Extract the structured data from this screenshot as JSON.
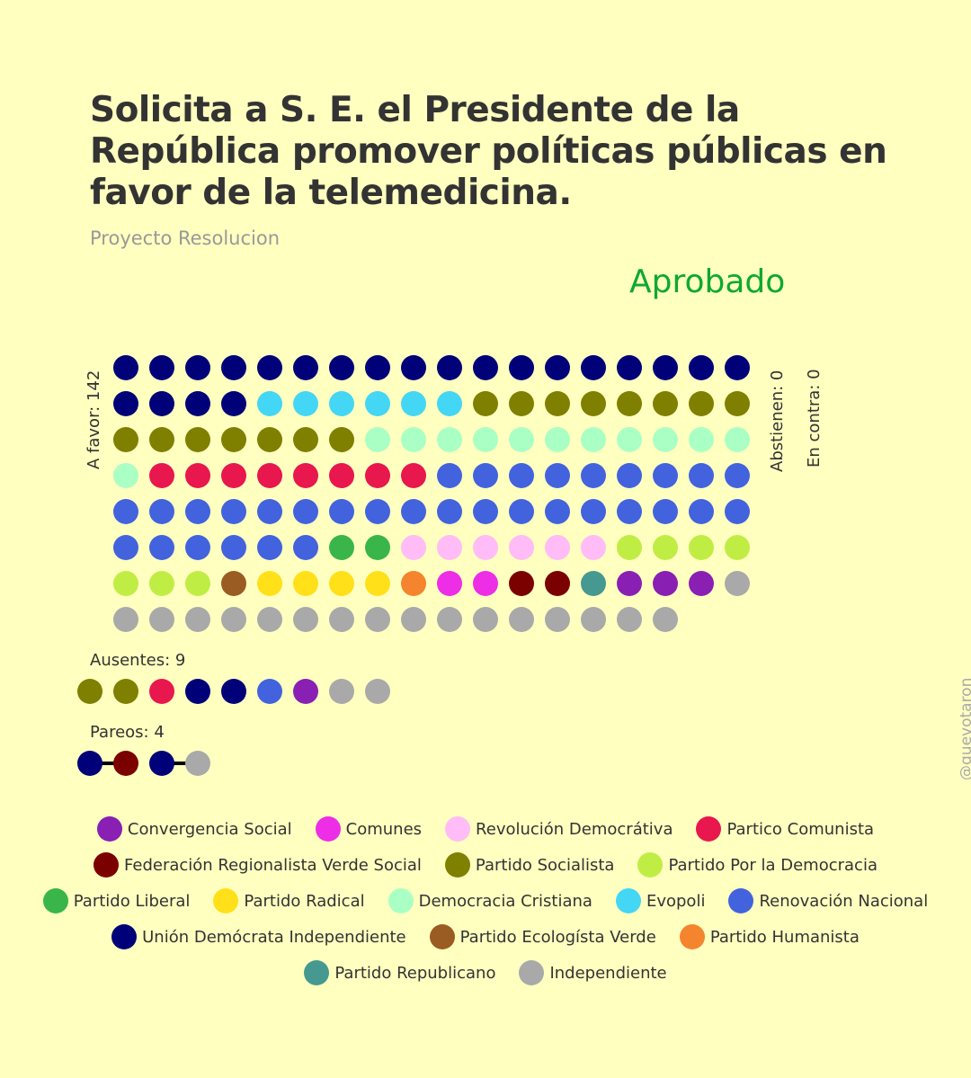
{
  "header": {
    "title": "Solicita a S. E. el Presidente de la República promover políticas públicas en favor de la telemedicina.",
    "subtitle": "Proyecto Resolucion",
    "status": "Aprobado",
    "status_color": "#0fa832"
  },
  "parties": {
    "CS": {
      "name": "Convergencia Social",
      "color": "#8a1fb3"
    },
    "COM": {
      "name": "Comunes",
      "color": "#ee2de6"
    },
    "RD": {
      "name": "Revolución Democrátiva",
      "color": "#ffbcf6"
    },
    "PC": {
      "name": "Partico Comunista",
      "color": "#e8174e"
    },
    "FRVS": {
      "name": "Federación Regionalista Verde Social",
      "color": "#7b0000"
    },
    "PS": {
      "name": "Partido Socialista",
      "color": "#7f7f00"
    },
    "PPD": {
      "name": "Partido Por la Democracia",
      "color": "#c0ed44"
    },
    "PL": {
      "name": "Partido Liberal",
      "color": "#3ab54a"
    },
    "PR": {
      "name": "Partido Radical",
      "color": "#ffe019"
    },
    "DC": {
      "name": "Democracia Cristiana",
      "color": "#aaffc4"
    },
    "EVO": {
      "name": "Evopoli",
      "color": "#44d6f5"
    },
    "RN": {
      "name": "Renovación Nacional",
      "color": "#4263dd"
    },
    "UDI": {
      "name": "Unión Demócrata Independiente",
      "color": "#000078"
    },
    "PEV": {
      "name": "Partido Ecologísta Verde",
      "color": "#9a5c23"
    },
    "PH": {
      "name": "Partido Humanista",
      "color": "#f5842e"
    },
    "REP": {
      "name": "Partido Republicano",
      "color": "#469990"
    },
    "IND": {
      "name": "Independiente",
      "color": "#a9a9a9"
    }
  },
  "legend_order": [
    "CS",
    "COM",
    "RD",
    "PC",
    "FRVS",
    "PS",
    "PPD",
    "PL",
    "PR",
    "DC",
    "EVO",
    "RN",
    "UDI",
    "PEV",
    "PH",
    "REP",
    "IND"
  ],
  "labels": {
    "a_favor": "A favor: 142",
    "abstienen": "Abstienen: 0",
    "en_contra": "En contra: 0",
    "ausentes": "Ausentes: 9",
    "pareos": "Pareos: 4",
    "credit": "@quevotaron"
  },
  "chart_data": {
    "type": "waffle",
    "a_favor": {
      "count": 142,
      "columns": 18,
      "groups": [
        {
          "party": "UDI",
          "count": 22
        },
        {
          "party": "EVO",
          "count": 6
        },
        {
          "party": "PS",
          "count": 15
        },
        {
          "party": "DC",
          "count": 12
        },
        {
          "party": "PC",
          "count": 8
        },
        {
          "party": "RN",
          "count": 33
        },
        {
          "party": "PL",
          "count": 2
        },
        {
          "party": "RD",
          "count": 6
        },
        {
          "party": "PPD",
          "count": 7
        },
        {
          "party": "PEV",
          "count": 1
        },
        {
          "party": "PR",
          "count": 4
        },
        {
          "party": "PH",
          "count": 1
        },
        {
          "party": "COM",
          "count": 2
        },
        {
          "party": "FRVS",
          "count": 2
        },
        {
          "party": "REP",
          "count": 1
        },
        {
          "party": "CS",
          "count": 3
        },
        {
          "party": "IND",
          "count": 17
        }
      ]
    },
    "abstienen": {
      "count": 0
    },
    "en_contra": {
      "count": 0
    },
    "ausentes": {
      "count": 9,
      "members": [
        "PS",
        "PS",
        "PC",
        "UDI",
        "UDI",
        "RN",
        "CS",
        "IND",
        "IND"
      ]
    },
    "pareos": {
      "count": 4,
      "pairs": [
        [
          "UDI",
          "FRVS"
        ],
        [
          "UDI",
          "IND"
        ]
      ]
    }
  }
}
